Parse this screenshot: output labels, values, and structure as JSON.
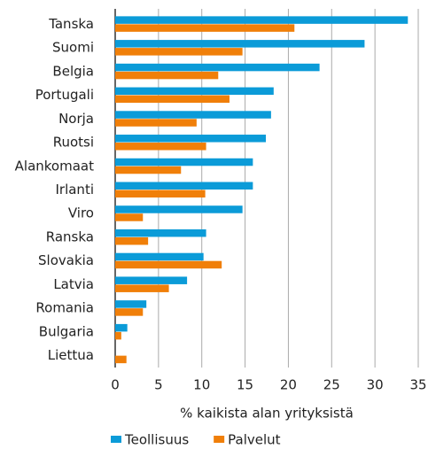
{
  "chart_data": {
    "type": "barh",
    "categories": [
      "Tanska",
      "Suomi",
      "Belgia",
      "Portugali",
      "Norja",
      "Ruotsi",
      "Alankomaat",
      "Irlanti",
      "Viro",
      "Ranska",
      "Slovakia",
      "Latvia",
      "Romania",
      "Bulgaria",
      "Liettua"
    ],
    "series": [
      {
        "name": "Teollisuus",
        "color": "#0b9bd8",
        "values": [
          33.8,
          28.8,
          23.6,
          18.3,
          18.0,
          17.4,
          15.9,
          15.9,
          14.7,
          10.5,
          10.2,
          8.3,
          3.6,
          1.4,
          0
        ]
      },
      {
        "name": "Palvelut",
        "color": "#f07f09",
        "values": [
          20.7,
          14.7,
          11.9,
          13.2,
          9.4,
          10.5,
          7.6,
          10.4,
          3.2,
          3.8,
          12.3,
          6.2,
          3.2,
          0.7,
          1.3
        ]
      }
    ],
    "xlabel": "% kaikista alan yrityksistä",
    "xlim": [
      0,
      35
    ],
    "xticks": [
      0,
      5,
      10,
      15,
      20,
      25,
      30,
      35
    ],
    "grid": true,
    "legend": "bottom"
  }
}
